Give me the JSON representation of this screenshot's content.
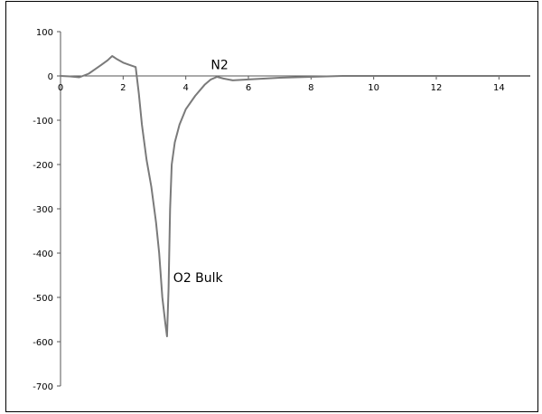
{
  "chart_data": {
    "type": "line",
    "title": "",
    "xlabel": "",
    "ylabel": "",
    "xlim": [
      0,
      15
    ],
    "ylim": [
      -700,
      100
    ],
    "xticks": [
      0,
      2,
      4,
      6,
      8,
      10,
      12,
      14
    ],
    "yticks": [
      100,
      0,
      -100,
      -200,
      -300,
      -400,
      -500,
      -600,
      -700
    ],
    "grid": false,
    "legend": "none",
    "line_color": "#7a7a7a",
    "series": [
      {
        "points": [
          [
            0,
            0
          ],
          [
            0.3,
            -1
          ],
          [
            0.6,
            -3
          ],
          [
            0.9,
            5
          ],
          [
            1.1,
            15
          ],
          [
            1.3,
            25
          ],
          [
            1.5,
            35
          ],
          [
            1.65,
            45
          ],
          [
            1.8,
            38
          ],
          [
            2.0,
            30
          ],
          [
            2.2,
            25
          ],
          [
            2.4,
            20
          ],
          [
            2.5,
            -40
          ],
          [
            2.6,
            -110
          ],
          [
            2.75,
            -190
          ],
          [
            2.9,
            -250
          ],
          [
            3.05,
            -330
          ],
          [
            3.15,
            -400
          ],
          [
            3.25,
            -500
          ],
          [
            3.35,
            -560
          ],
          [
            3.4,
            -588
          ],
          [
            3.45,
            -480
          ],
          [
            3.5,
            -300
          ],
          [
            3.55,
            -200
          ],
          [
            3.65,
            -150
          ],
          [
            3.8,
            -110
          ],
          [
            4.0,
            -75
          ],
          [
            4.3,
            -45
          ],
          [
            4.6,
            -20
          ],
          [
            4.8,
            -8
          ],
          [
            5.0,
            -2
          ],
          [
            5.2,
            -6
          ],
          [
            5.5,
            -10
          ],
          [
            6.0,
            -8
          ],
          [
            7.0,
            -4
          ],
          [
            8.0,
            -2
          ],
          [
            9.0,
            0
          ],
          [
            10.0,
            0
          ],
          [
            11.0,
            0
          ],
          [
            12.0,
            0
          ],
          [
            13.0,
            0
          ],
          [
            14.0,
            0
          ],
          [
            15.0,
            0
          ]
        ]
      }
    ],
    "annotations": [
      {
        "text": "N2",
        "x": 4.8,
        "y": 15
      },
      {
        "text": "O2 Bulk",
        "x": 3.6,
        "y": -465
      }
    ]
  }
}
